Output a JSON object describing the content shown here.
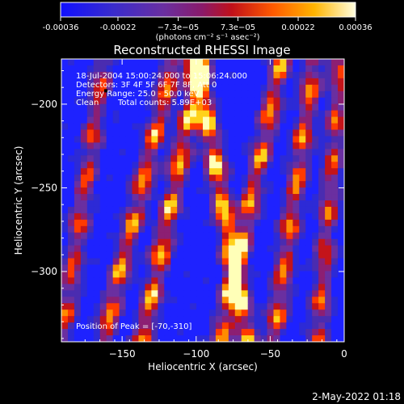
{
  "colorbar": {
    "ticks": [
      "-0.00036",
      "-0.00022",
      "−7.3e−05",
      "7.3e−05",
      "0.00022",
      "0.00036"
    ],
    "tick_values": [
      -0.00036,
      -0.00022,
      -7.3e-05,
      7.3e-05,
      0.00022,
      0.00036
    ],
    "range": [
      -0.00036,
      0.00036
    ],
    "unit_label": "(photons cm⁻² s⁻¹ asec⁻²)"
  },
  "title": "Reconstructed RHESSI Image",
  "info": {
    "line1": "18-Jul-2004 15:00:24.000 to 15:06:24.000",
    "line2": "Detectors: 3F 4F 5F 6F 7F 8F, Att 0",
    "line3": "Energy Range: 25.0 - 50.0 keV",
    "line4_a": "Clean",
    "line4_b": "Total counts: 5.89E+03",
    "peak": "Position of Peak = [-70,-310]"
  },
  "footer_date": "2-May-2022 01:18",
  "chart_data": {
    "type": "heatmap",
    "title": "Reconstructed RHESSI Image",
    "xlabel": "Heliocentric X (arcsec)",
    "ylabel": "Heliocentric Y (arcsec)",
    "xlim": [
      -191,
      0
    ],
    "ylim": [
      -342,
      -173
    ],
    "xticks": [
      -150,
      -100,
      -50,
      0
    ],
    "yticks": [
      -200,
      -250,
      -300
    ],
    "colormap": [
      "#1e22ff",
      "#2d2ad6",
      "#4a2cb0",
      "#6a2fa0",
      "#8c1f73",
      "#c4141a",
      "#ff3a00",
      "#ff8c00",
      "#ffd21a",
      "#ffffb8"
    ],
    "peak_position": [
      -70,
      -310
    ],
    "stripes": [
      {
        "x_top": -162,
        "x_bottom": -191,
        "amplitude": 0.7
      },
      {
        "x_top": -115,
        "x_bottom": -163,
        "amplitude": 0.85
      },
      {
        "x_top": -97,
        "x_bottom": -136,
        "amplitude": 0.9
      },
      {
        "x_top": -100,
        "x_bottom": -65,
        "amplitude": 1.0
      },
      {
        "x_top": -42,
        "x_bottom": -84,
        "amplitude": 0.85
      },
      {
        "x_top": -20,
        "x_bottom": -48,
        "amplitude": 0.8
      },
      {
        "x_top": -2,
        "x_bottom": -18,
        "amplitude": 0.7
      }
    ]
  }
}
